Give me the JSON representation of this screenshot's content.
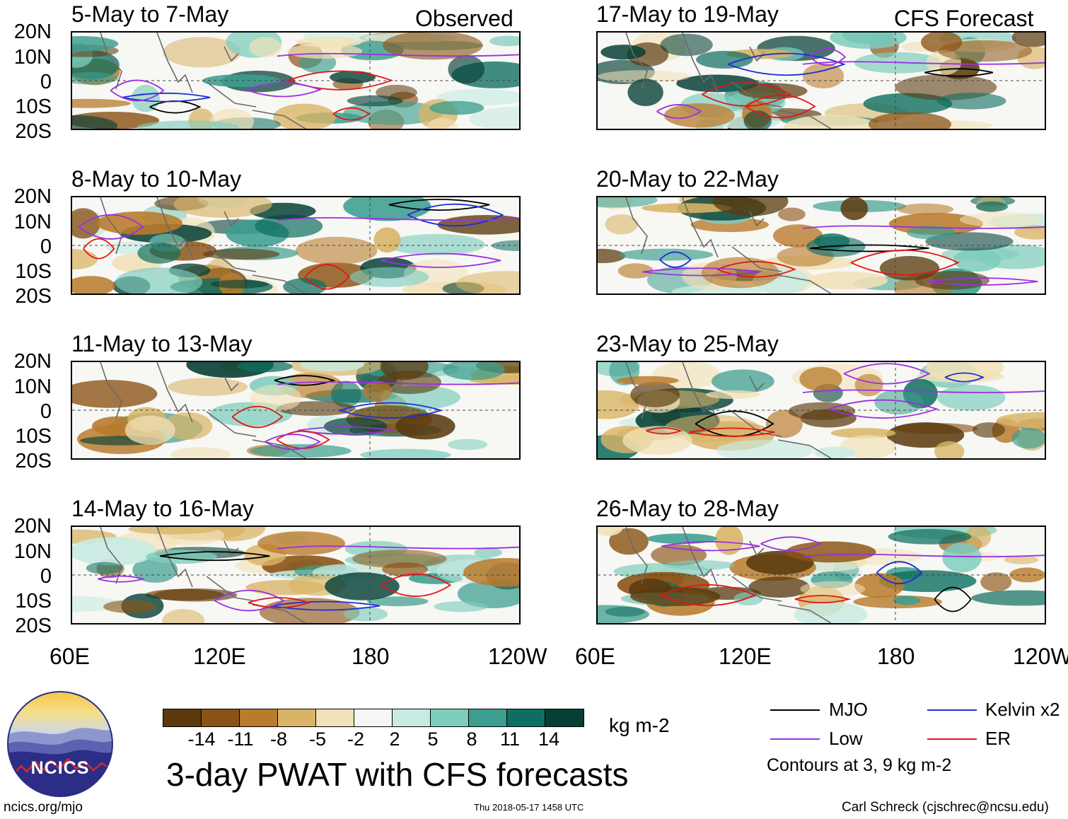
{
  "columns": [
    {
      "label": "Observed",
      "panels": [
        {
          "title": "5-May to 7-May"
        },
        {
          "title": "8-May to 10-May"
        },
        {
          "title": "11-May to 13-May"
        },
        {
          "title": "14-May to 16-May"
        }
      ]
    },
    {
      "label": "CFS Forecast",
      "panels": [
        {
          "title": "17-May to 19-May"
        },
        {
          "title": "20-May to 22-May"
        },
        {
          "title": "23-May to 25-May"
        },
        {
          "title": "26-May to 28-May"
        }
      ]
    }
  ],
  "axes": {
    "lat_labels": [
      "20N",
      "10N",
      "0",
      "10S",
      "20S"
    ],
    "lon_labels": [
      "60E",
      "120E",
      "180",
      "120W"
    ]
  },
  "colorbar": {
    "colors": [
      "#5a3a0e",
      "#8a5316",
      "#b97b2c",
      "#d9b466",
      "#f2e1b8",
      "#f6f6f6",
      "#c7ebe3",
      "#7ecdbd",
      "#3c9e8e",
      "#0e6e60",
      "#053f36"
    ],
    "ticks": [
      "-14",
      "-11",
      "-8",
      "-5",
      "-2",
      "2",
      "5",
      "8",
      "11",
      "14"
    ],
    "units": "kg m-2"
  },
  "title": "3-day PWAT with CFS forecasts",
  "legend": {
    "items": [
      {
        "label": "MJO",
        "color": "#000000"
      },
      {
        "label": "Kelvin x2",
        "color": "#1f2fd6"
      },
      {
        "label": "Low",
        "color": "#9b30e0"
      },
      {
        "label": "ER",
        "color": "#e01818"
      }
    ],
    "note": "Contours at 3, 9 kg m-2"
  },
  "logo": {
    "text": "NCICS"
  },
  "footer": {
    "url": "ncics.org/mjo",
    "timestamp": "Thu 2018-05-17 1458 UTC",
    "author": "Carl Schreck (cjschrec@ncsu.edu)"
  }
}
